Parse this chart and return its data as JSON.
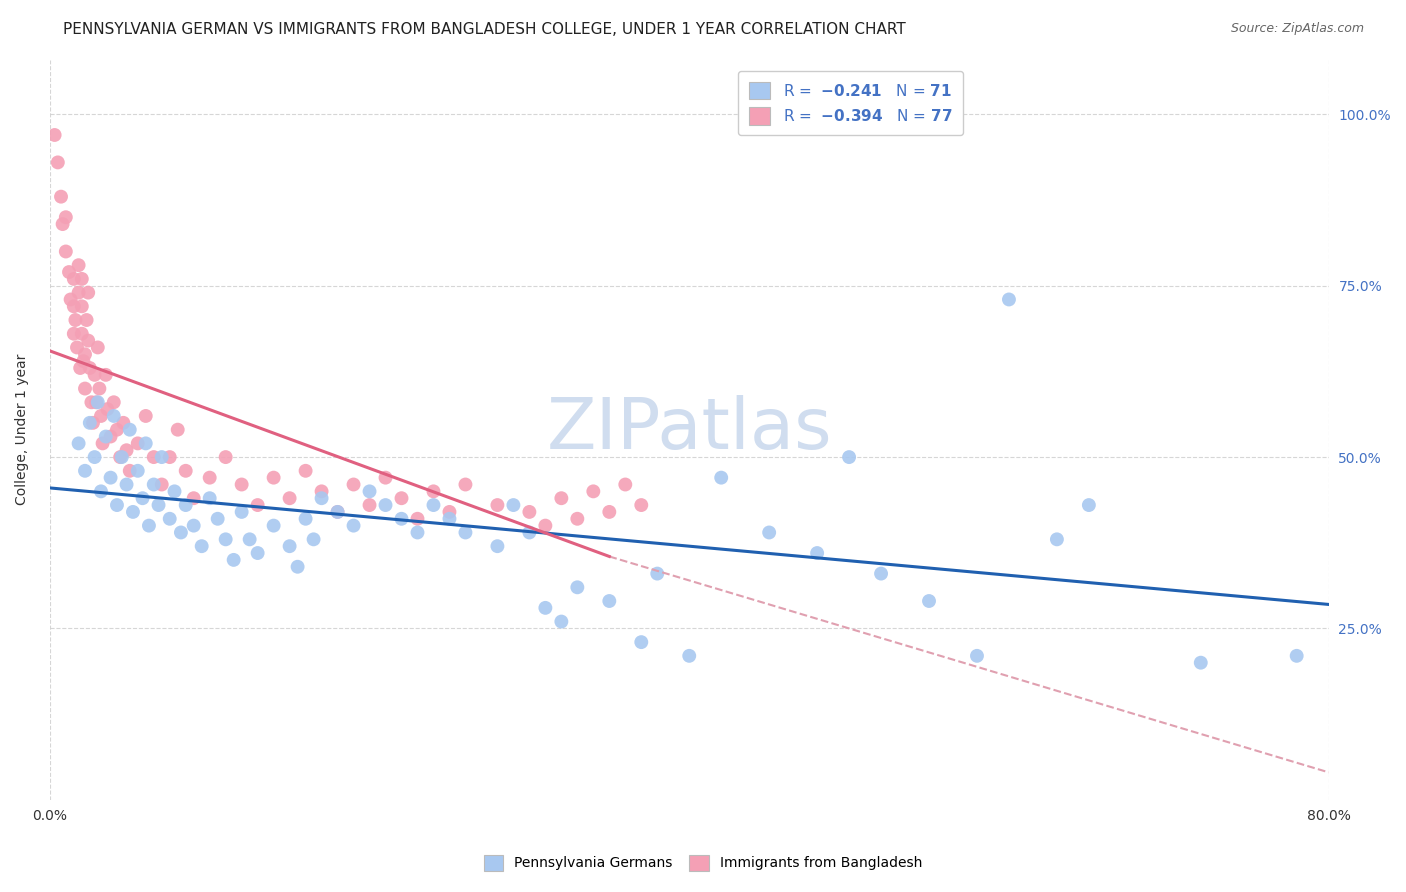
{
  "title": "PENNSYLVANIA GERMAN VS IMMIGRANTS FROM BANGLADESH COLLEGE, UNDER 1 YEAR CORRELATION CHART",
  "source": "Source: ZipAtlas.com",
  "ylabel": "College, Under 1 year",
  "xlim": [
    0.0,
    0.8
  ],
  "ylim": [
    0.0,
    1.08
  ],
  "x_tick_labels": [
    "0.0%",
    "80.0%"
  ],
  "x_tick_positions": [
    0.0,
    0.8
  ],
  "y_tick_labels": [
    "25.0%",
    "50.0%",
    "75.0%",
    "100.0%"
  ],
  "y_tick_positions": [
    0.25,
    0.5,
    0.75,
    1.0
  ],
  "color_blue": "#A8C8F0",
  "color_pink": "#F4A0B5",
  "line_blue": "#2060B0",
  "line_pink": "#E06080",
  "line_dashed_color": "#E0A0B0",
  "watermark_text": "ZIPatlas",
  "watermark_color": "#D0DDEF",
  "blue_line_x0": 0.0,
  "blue_line_x1": 0.8,
  "blue_line_y0": 0.455,
  "blue_line_y1": 0.285,
  "pink_line_x0": 0.0,
  "pink_line_x1": 0.35,
  "pink_line_y0": 0.655,
  "pink_line_y1": 0.355,
  "dashed_line_x0": 0.35,
  "dashed_line_x1": 0.8,
  "dashed_line_y0": 0.355,
  "dashed_line_y1": 0.04,
  "grid_color": "#CCCCCC",
  "background_color": "#FFFFFF",
  "title_fontsize": 11,
  "label_fontsize": 10,
  "tick_fontsize": 10,
  "legend_fontsize": 11,
  "right_tick_color": "#4472C4",
  "watermark_fontsize": 52,
  "blue_n": 71,
  "pink_n": 77,
  "blue_scatter_x": [
    0.018,
    0.022,
    0.025,
    0.028,
    0.03,
    0.032,
    0.035,
    0.038,
    0.04,
    0.042,
    0.045,
    0.048,
    0.05,
    0.052,
    0.055,
    0.058,
    0.06,
    0.062,
    0.065,
    0.068,
    0.07,
    0.075,
    0.078,
    0.082,
    0.085,
    0.09,
    0.095,
    0.1,
    0.105,
    0.11,
    0.115,
    0.12,
    0.125,
    0.13,
    0.14,
    0.15,
    0.155,
    0.16,
    0.165,
    0.17,
    0.18,
    0.19,
    0.2,
    0.21,
    0.22,
    0.23,
    0.24,
    0.25,
    0.26,
    0.28,
    0.29,
    0.3,
    0.31,
    0.32,
    0.33,
    0.35,
    0.37,
    0.38,
    0.4,
    0.42,
    0.45,
    0.48,
    0.5,
    0.52,
    0.55,
    0.58,
    0.6,
    0.63,
    0.65,
    0.72,
    0.78
  ],
  "blue_scatter_y": [
    0.52,
    0.48,
    0.55,
    0.5,
    0.58,
    0.45,
    0.53,
    0.47,
    0.56,
    0.43,
    0.5,
    0.46,
    0.54,
    0.42,
    0.48,
    0.44,
    0.52,
    0.4,
    0.46,
    0.43,
    0.5,
    0.41,
    0.45,
    0.39,
    0.43,
    0.4,
    0.37,
    0.44,
    0.41,
    0.38,
    0.35,
    0.42,
    0.38,
    0.36,
    0.4,
    0.37,
    0.34,
    0.41,
    0.38,
    0.44,
    0.42,
    0.4,
    0.45,
    0.43,
    0.41,
    0.39,
    0.43,
    0.41,
    0.39,
    0.37,
    0.43,
    0.39,
    0.28,
    0.26,
    0.31,
    0.29,
    0.23,
    0.33,
    0.21,
    0.47,
    0.39,
    0.36,
    0.5,
    0.33,
    0.29,
    0.21,
    0.73,
    0.38,
    0.43,
    0.2,
    0.21
  ],
  "pink_scatter_x": [
    0.003,
    0.005,
    0.007,
    0.008,
    0.01,
    0.01,
    0.012,
    0.013,
    0.015,
    0.015,
    0.015,
    0.016,
    0.017,
    0.018,
    0.018,
    0.019,
    0.02,
    0.02,
    0.02,
    0.021,
    0.022,
    0.022,
    0.023,
    0.024,
    0.024,
    0.025,
    0.026,
    0.027,
    0.028,
    0.029,
    0.03,
    0.031,
    0.032,
    0.033,
    0.035,
    0.036,
    0.038,
    0.04,
    0.042,
    0.044,
    0.046,
    0.048,
    0.05,
    0.055,
    0.06,
    0.065,
    0.07,
    0.075,
    0.08,
    0.085,
    0.09,
    0.1,
    0.11,
    0.12,
    0.13,
    0.14,
    0.15,
    0.16,
    0.17,
    0.18,
    0.19,
    0.2,
    0.21,
    0.22,
    0.23,
    0.24,
    0.25,
    0.26,
    0.28,
    0.3,
    0.31,
    0.32,
    0.33,
    0.34,
    0.35,
    0.36,
    0.37
  ],
  "pink_scatter_y": [
    0.97,
    0.93,
    0.88,
    0.84,
    0.8,
    0.85,
    0.77,
    0.73,
    0.68,
    0.72,
    0.76,
    0.7,
    0.66,
    0.74,
    0.78,
    0.63,
    0.68,
    0.72,
    0.76,
    0.64,
    0.6,
    0.65,
    0.7,
    0.74,
    0.67,
    0.63,
    0.58,
    0.55,
    0.62,
    0.58,
    0.66,
    0.6,
    0.56,
    0.52,
    0.62,
    0.57,
    0.53,
    0.58,
    0.54,
    0.5,
    0.55,
    0.51,
    0.48,
    0.52,
    0.56,
    0.5,
    0.46,
    0.5,
    0.54,
    0.48,
    0.44,
    0.47,
    0.5,
    0.46,
    0.43,
    0.47,
    0.44,
    0.48,
    0.45,
    0.42,
    0.46,
    0.43,
    0.47,
    0.44,
    0.41,
    0.45,
    0.42,
    0.46,
    0.43,
    0.42,
    0.4,
    0.44,
    0.41,
    0.45,
    0.42,
    0.46,
    0.43
  ]
}
